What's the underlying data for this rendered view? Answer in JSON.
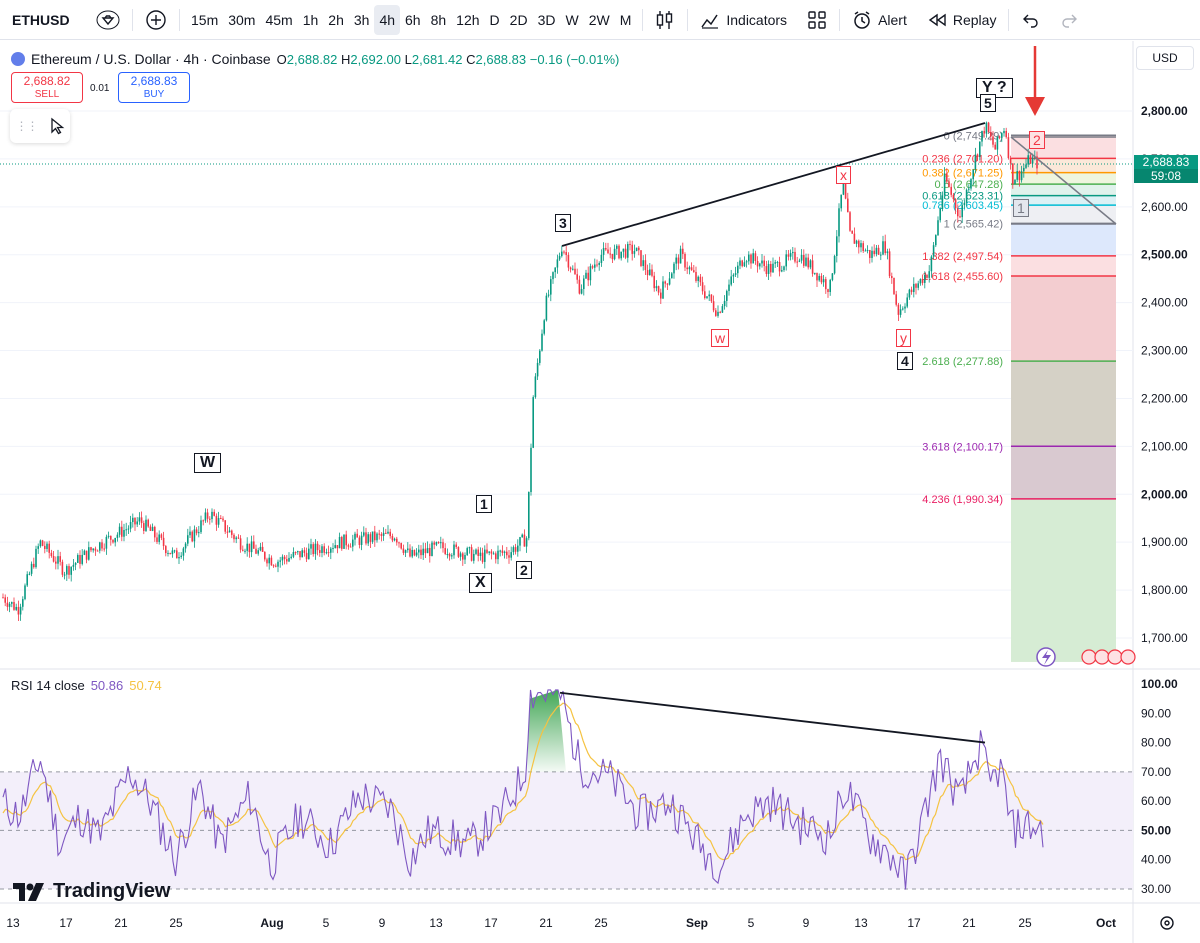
{
  "toolbar": {
    "symbol": "ETHUSD",
    "timeframes": [
      "15m",
      "30m",
      "45m",
      "1h",
      "2h",
      "3h",
      "4h",
      "6h",
      "8h",
      "12h",
      "D",
      "2D",
      "3D",
      "W",
      "2W",
      "M"
    ],
    "active_timeframe": "4h",
    "indicators_label": "Indicators",
    "alert_label": "Alert",
    "replay_label": "Replay"
  },
  "legend": {
    "title": "Ethereum / U.S. Dollar · 4h · Coinbase",
    "o_key": "O",
    "o": "2,688.82",
    "h_key": "H",
    "h": "2,692.00",
    "l_key": "L",
    "l": "2,681.42",
    "c_key": "C",
    "c": "2,688.83",
    "change": "−0.16 (−0.01%)"
  },
  "trade": {
    "sell_price": "2,688.82",
    "sell_label": "SELL",
    "spread": "0.01",
    "buy_price": "2,688.83",
    "buy_label": "BUY"
  },
  "currency": "USD",
  "current_price": {
    "price": "2,688.83",
    "countdown": "59:08"
  },
  "price_axis": [
    "2,800.00",
    "2,700.00",
    "2,600.00",
    "2,500.00",
    "2,400.00",
    "2,300.00",
    "2,200.00",
    "2,100.00",
    "2,000.00",
    "1,900.00",
    "1,800.00",
    "1,700.00"
  ],
  "rsi_axis": [
    "100.00",
    "90.00",
    "80.00",
    "70.00",
    "60.00",
    "50.00",
    "40.00",
    "30.00"
  ],
  "time_axis": [
    "13",
    "17",
    "21",
    "25",
    "Aug",
    "5",
    "9",
    "13",
    "17",
    "21",
    "25",
    "Sep",
    "5",
    "9",
    "13",
    "17",
    "21",
    "25",
    "Oct"
  ],
  "fib_levels": [
    {
      "label": "0 (2,749.29)",
      "color": "#787b86"
    },
    {
      "label": "0.236 (2,701.20)",
      "color": "#f23645"
    },
    {
      "label": "0.382 (2,671.25)",
      "color": "#ff9800"
    },
    {
      "label": "0.5 (2,647.28)",
      "color": "#4caf50"
    },
    {
      "label": "0.618 (2,623.31)",
      "color": "#089981"
    },
    {
      "label": "0.786 (2,603.45)",
      "color": "#00bcd4"
    },
    {
      "label": "1 (2,565.42)",
      "color": "#787b86"
    },
    {
      "label": "1.382 (2,497.54)",
      "color": "#f23645"
    },
    {
      "label": "1.618 (2,455.60)",
      "color": "#f23645"
    },
    {
      "label": "2.618 (2,277.88)",
      "color": "#4caf50"
    },
    {
      "label": "3.618 (2,100.17)",
      "color": "#9c27b0"
    },
    {
      "label": "4.236 (1,990.34)",
      "color": "#e91e63"
    }
  ],
  "waves": {
    "W": "W",
    "X": "X",
    "Y": "Y ?",
    "n1": "1",
    "n2": "2",
    "n3": "3",
    "n4": "4",
    "n5": "5",
    "w": "w",
    "x": "x",
    "y": "y",
    "r1": "1",
    "r2": "2"
  },
  "rsi": {
    "title": "RSI 14 close",
    "value1": "50.86",
    "value2": "50.74"
  },
  "logo_text": "TradingView",
  "colors": {
    "up": "#089981",
    "down": "#f23645",
    "rsi": "#7e57c2",
    "rsi_ma": "#f5c342"
  }
}
